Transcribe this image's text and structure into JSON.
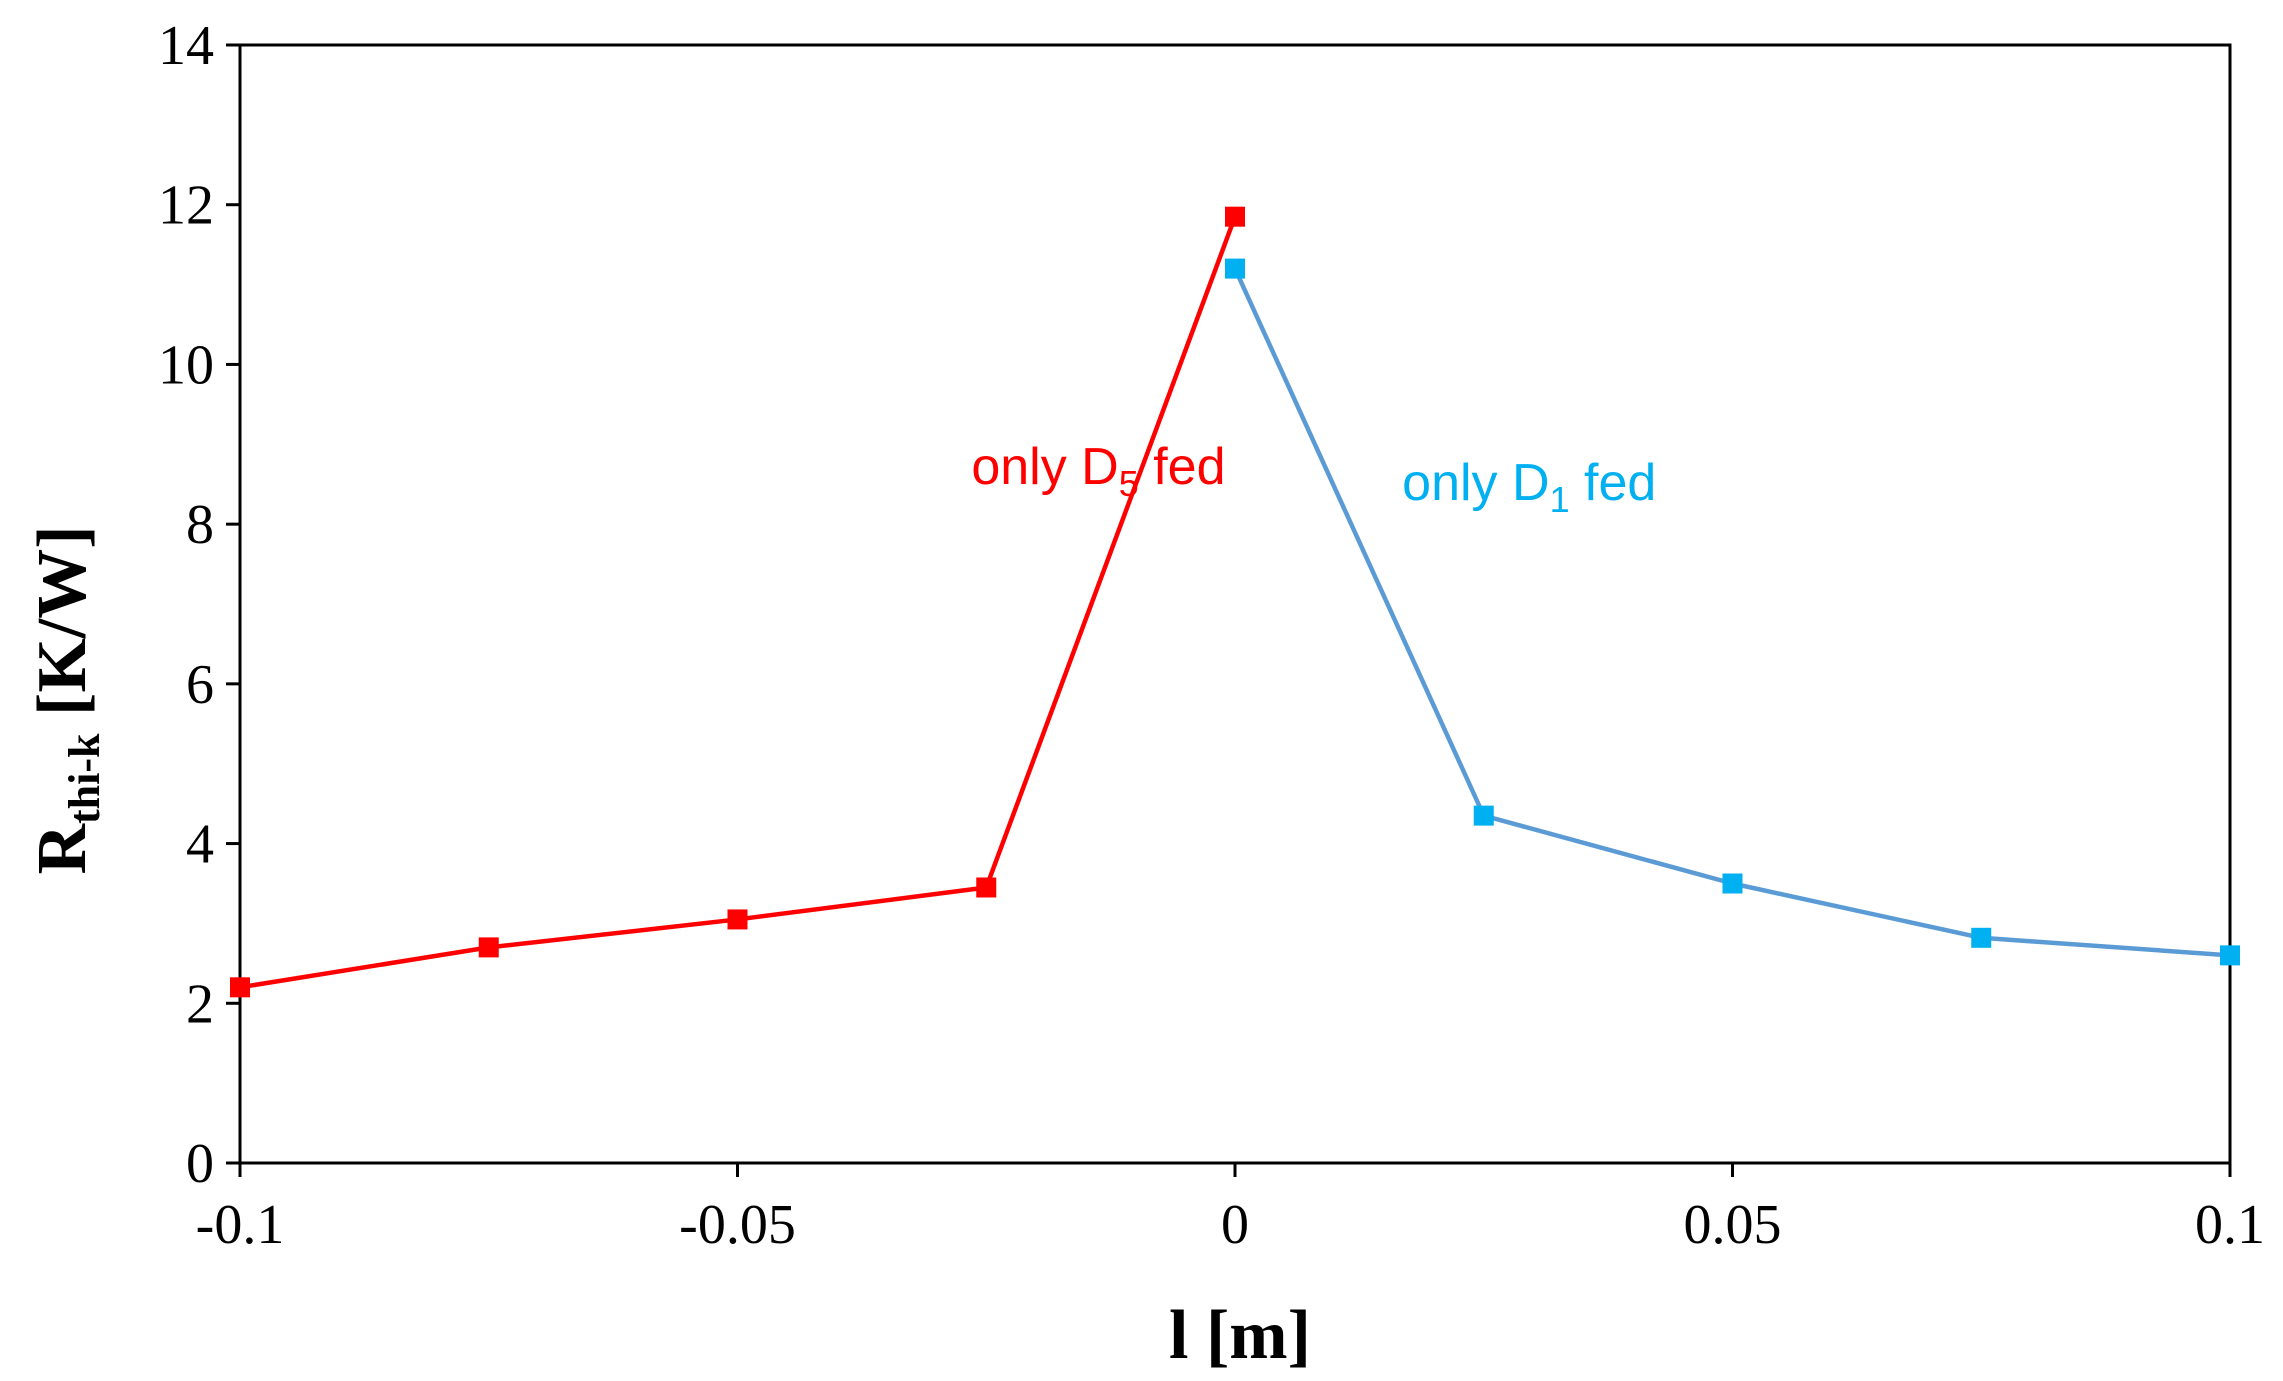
{
  "chart_data": {
    "type": "line",
    "title": "",
    "xlabel": "l [m]",
    "xlabel_parts": {
      "main": "l [m]"
    },
    "ylabel_parts": {
      "main": "R",
      "sub": "thi-k",
      "unit": " [K/W]"
    },
    "xlim": [
      -0.1,
      0.1
    ],
    "ylim": [
      0,
      14
    ],
    "xticks": [
      -0.1,
      -0.05,
      0,
      0.05,
      0.1
    ],
    "xtick_labels": [
      "-0.1",
      "-0.05",
      "0",
      "0.05",
      "0.1"
    ],
    "yticks": [
      0,
      2,
      4,
      6,
      8,
      10,
      12,
      14
    ],
    "ytick_labels": [
      "0",
      "2",
      "4",
      "6",
      "8",
      "10",
      "12",
      "14"
    ],
    "grid": false,
    "series": [
      {
        "name": "only D5 fed",
        "line_color": "#FF0000",
        "marker_color": "#FF0000",
        "x": [
          -0.1,
          -0.075,
          -0.05,
          -0.025,
          0
        ],
        "y": [
          2.2,
          2.7,
          3.05,
          3.45,
          11.85
        ]
      },
      {
        "name": "only D1 fed",
        "line_color": "#5B9BD5",
        "marker_color": "#00B0F0",
        "x": [
          0,
          0.025,
          0.05,
          0.075,
          0.1
        ],
        "y": [
          11.2,
          4.35,
          3.5,
          2.82,
          2.6
        ]
      }
    ],
    "annotations": [
      {
        "name": "d5",
        "prefix": "only D",
        "sub": "5",
        "suffix": " fed",
        "color": "#FF0000",
        "x": -0.0265,
        "y": 8.5
      },
      {
        "name": "d1",
        "prefix": "only D",
        "sub": "1",
        "suffix": " fed",
        "color": "#00B0F0",
        "x": 0.0168,
        "y": 8.3
      }
    ]
  }
}
